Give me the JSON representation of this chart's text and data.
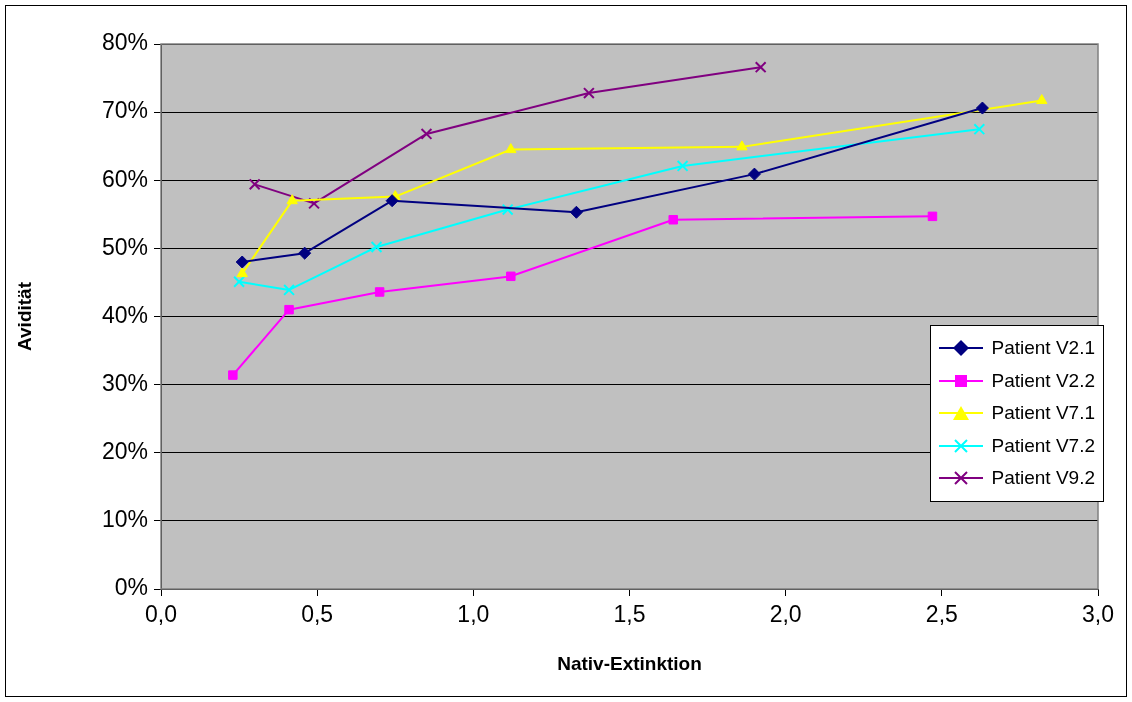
{
  "chart_data": {
    "type": "line",
    "xlabel": "Nativ-Extinktion",
    "ylabel": "Avidität",
    "xlim": [
      0,
      3
    ],
    "xticks": [
      {
        "value": 0,
        "label": "0,0"
      },
      {
        "value": 0.5,
        "label": "0,5"
      },
      {
        "value": 1,
        "label": "1,0"
      },
      {
        "value": 1.5,
        "label": "1,5"
      },
      {
        "value": 2,
        "label": "2,0"
      },
      {
        "value": 2.5,
        "label": "2,5"
      },
      {
        "value": 3,
        "label": "3,0"
      }
    ],
    "ylim": [
      0,
      80
    ],
    "yticks": [
      {
        "value": 0,
        "label": "0%"
      },
      {
        "value": 10,
        "label": "10%"
      },
      {
        "value": 20,
        "label": "20%"
      },
      {
        "value": 30,
        "label": "30%"
      },
      {
        "value": 40,
        "label": "40%"
      },
      {
        "value": 50,
        "label": "50%"
      },
      {
        "value": 60,
        "label": "60%"
      },
      {
        "value": 70,
        "label": "70%"
      },
      {
        "value": 80,
        "label": "80%"
      }
    ],
    "grid": "y",
    "legend": "right",
    "line_style": "solid",
    "series": [
      {
        "name": "Patient V2.1",
        "color": "#000080",
        "marker": "diamond",
        "x": [
          0.26,
          0.46,
          0.74,
          1.33,
          1.9,
          2.63
        ],
        "values": [
          48.0,
          49.3,
          57.0,
          55.3,
          60.9,
          70.6
        ]
      },
      {
        "name": "Patient V2.2",
        "color": "#ff00ff",
        "marker": "square",
        "x": [
          0.23,
          0.41,
          0.7,
          1.12,
          1.64,
          2.47
        ],
        "values": [
          31.4,
          41.0,
          43.6,
          45.9,
          54.2,
          54.7
        ]
      },
      {
        "name": "Patient V7.1",
        "color": "#ffff00",
        "marker": "triangle",
        "x": [
          0.26,
          0.42,
          0.75,
          1.12,
          1.86,
          2.82
        ],
        "values": [
          46.3,
          57.0,
          57.6,
          64.5,
          64.9,
          71.7
        ]
      },
      {
        "name": "Patient V7.2",
        "color": "#00ffff",
        "marker": "cross",
        "x": [
          0.25,
          0.41,
          0.69,
          1.11,
          1.67,
          2.62
        ],
        "values": [
          45.1,
          43.9,
          50.2,
          55.7,
          62.1,
          67.5
        ]
      },
      {
        "name": "Patient V9.2",
        "color": "#800080",
        "marker": "cross",
        "x": [
          0.3,
          0.49,
          0.85,
          1.37,
          1.92
        ],
        "values": [
          59.4,
          56.6,
          66.8,
          72.8,
          76.6
        ]
      }
    ]
  }
}
